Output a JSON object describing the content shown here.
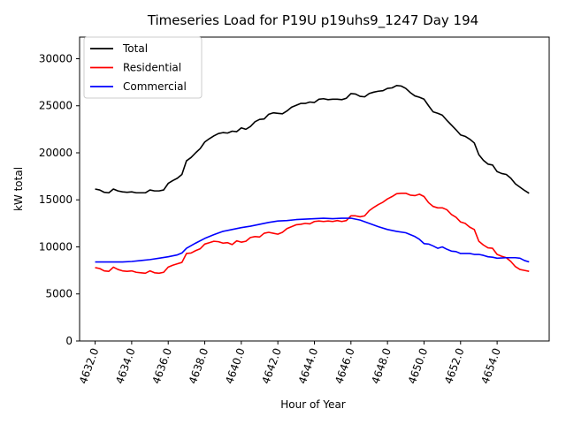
{
  "chart_data": {
    "type": "line",
    "title": "Timeseries Load for P19U p19uhs9_1247  Day 194",
    "xlabel": "Hour of Year",
    "ylabel": "kW total",
    "xlim": [
      4631.15,
      4656.85
    ],
    "ylim": [
      0,
      32300
    ],
    "x_ticks": [
      4632,
      4634,
      4636,
      4638,
      4640,
      4642,
      4644,
      4646,
      4648,
      4650,
      4652,
      4654
    ],
    "x_tick_labels": [
      "4632.0",
      "4634.0",
      "4636.0",
      "4638.0",
      "4640.0",
      "4642.0",
      "4644.0",
      "4646.0",
      "4648.0",
      "4650.0",
      "4652.0",
      "4654.0"
    ],
    "y_ticks": [
      0,
      5000,
      10000,
      15000,
      20000,
      25000,
      30000
    ],
    "y_tick_labels": [
      "0",
      "5000",
      "10000",
      "15000",
      "20000",
      "25000",
      "30000"
    ],
    "grid": false,
    "legend_position": "top-left",
    "series": [
      {
        "name": "Total",
        "color": "#000000",
        "points": [
          [
            4632.0,
            16150
          ],
          [
            4632.25,
            16050
          ],
          [
            4632.5,
            15800
          ],
          [
            4632.75,
            15750
          ],
          [
            4633.0,
            16150
          ],
          [
            4633.25,
            15950
          ],
          [
            4633.5,
            15850
          ],
          [
            4633.75,
            15800
          ],
          [
            4634.0,
            15850
          ],
          [
            4634.25,
            15750
          ],
          [
            4634.5,
            15750
          ],
          [
            4634.75,
            15750
          ],
          [
            4635.0,
            16050
          ],
          [
            4635.25,
            15950
          ],
          [
            4635.5,
            15950
          ],
          [
            4635.75,
            16050
          ],
          [
            4636.0,
            16750
          ],
          [
            4636.25,
            17050
          ],
          [
            4636.5,
            17300
          ],
          [
            4636.75,
            17700
          ],
          [
            4637.0,
            19150
          ],
          [
            4637.25,
            19500
          ],
          [
            4637.5,
            20000
          ],
          [
            4637.75,
            20450
          ],
          [
            4638.0,
            21150
          ],
          [
            4638.25,
            21500
          ],
          [
            4638.5,
            21800
          ],
          [
            4638.75,
            22050
          ],
          [
            4639.0,
            22150
          ],
          [
            4639.25,
            22100
          ],
          [
            4639.5,
            22300
          ],
          [
            4639.75,
            22250
          ],
          [
            4640.0,
            22650
          ],
          [
            4640.25,
            22500
          ],
          [
            4640.5,
            22800
          ],
          [
            4640.75,
            23300
          ],
          [
            4641.0,
            23550
          ],
          [
            4641.25,
            23600
          ],
          [
            4641.5,
            24100
          ],
          [
            4641.75,
            24250
          ],
          [
            4642.0,
            24200
          ],
          [
            4642.25,
            24150
          ],
          [
            4642.5,
            24450
          ],
          [
            4642.75,
            24850
          ],
          [
            4643.0,
            25050
          ],
          [
            4643.25,
            25250
          ],
          [
            4643.5,
            25250
          ],
          [
            4643.75,
            25400
          ],
          [
            4644.0,
            25350
          ],
          [
            4644.25,
            25700
          ],
          [
            4644.5,
            25750
          ],
          [
            4644.75,
            25650
          ],
          [
            4645.0,
            25700
          ],
          [
            4645.25,
            25700
          ],
          [
            4645.5,
            25650
          ],
          [
            4645.75,
            25800
          ],
          [
            4646.0,
            26300
          ],
          [
            4646.25,
            26250
          ],
          [
            4646.5,
            26000
          ],
          [
            4646.75,
            25950
          ],
          [
            4647.0,
            26300
          ],
          [
            4647.25,
            26450
          ],
          [
            4647.5,
            26550
          ],
          [
            4647.75,
            26600
          ],
          [
            4648.0,
            26850
          ],
          [
            4648.25,
            26900
          ],
          [
            4648.5,
            27150
          ],
          [
            4648.75,
            27100
          ],
          [
            4649.0,
            26850
          ],
          [
            4649.25,
            26400
          ],
          [
            4649.5,
            26050
          ],
          [
            4649.75,
            25900
          ],
          [
            4650.0,
            25700
          ],
          [
            4650.25,
            25000
          ],
          [
            4650.5,
            24350
          ],
          [
            4650.75,
            24200
          ],
          [
            4651.0,
            24000
          ],
          [
            4651.25,
            23450
          ],
          [
            4651.5,
            22950
          ],
          [
            4651.75,
            22450
          ],
          [
            4652.0,
            21900
          ],
          [
            4652.25,
            21750
          ],
          [
            4652.5,
            21450
          ],
          [
            4652.75,
            21050
          ],
          [
            4653.0,
            19800
          ],
          [
            4653.25,
            19200
          ],
          [
            4653.5,
            18800
          ],
          [
            4653.75,
            18700
          ],
          [
            4654.0,
            18000
          ],
          [
            4654.25,
            17800
          ],
          [
            4654.5,
            17700
          ],
          [
            4654.75,
            17300
          ],
          [
            4655.0,
            16700
          ],
          [
            4655.25,
            16350
          ],
          [
            4655.5,
            16000
          ],
          [
            4655.75,
            15700
          ]
        ]
      },
      {
        "name": "Residential",
        "color": "#ff0000",
        "points": [
          [
            4632.0,
            7800
          ],
          [
            4632.25,
            7700
          ],
          [
            4632.5,
            7450
          ],
          [
            4632.75,
            7400
          ],
          [
            4633.0,
            7850
          ],
          [
            4633.25,
            7600
          ],
          [
            4633.5,
            7450
          ],
          [
            4633.75,
            7400
          ],
          [
            4634.0,
            7450
          ],
          [
            4634.25,
            7300
          ],
          [
            4634.5,
            7250
          ],
          [
            4634.75,
            7200
          ],
          [
            4635.0,
            7450
          ],
          [
            4635.25,
            7250
          ],
          [
            4635.5,
            7200
          ],
          [
            4635.75,
            7300
          ],
          [
            4636.0,
            7850
          ],
          [
            4636.25,
            8050
          ],
          [
            4636.5,
            8200
          ],
          [
            4636.75,
            8350
          ],
          [
            4637.0,
            9300
          ],
          [
            4637.25,
            9350
          ],
          [
            4637.5,
            9600
          ],
          [
            4637.75,
            9800
          ],
          [
            4638.0,
            10300
          ],
          [
            4638.25,
            10450
          ],
          [
            4638.5,
            10600
          ],
          [
            4638.75,
            10550
          ],
          [
            4639.0,
            10400
          ],
          [
            4639.25,
            10450
          ],
          [
            4639.5,
            10250
          ],
          [
            4639.75,
            10650
          ],
          [
            4640.0,
            10500
          ],
          [
            4640.25,
            10600
          ],
          [
            4640.5,
            11000
          ],
          [
            4640.75,
            11100
          ],
          [
            4641.0,
            11050
          ],
          [
            4641.25,
            11450
          ],
          [
            4641.5,
            11550
          ],
          [
            4641.75,
            11450
          ],
          [
            4642.0,
            11350
          ],
          [
            4642.25,
            11550
          ],
          [
            4642.5,
            11950
          ],
          [
            4642.75,
            12150
          ],
          [
            4643.0,
            12350
          ],
          [
            4643.25,
            12400
          ],
          [
            4643.5,
            12500
          ],
          [
            4643.75,
            12450
          ],
          [
            4644.0,
            12700
          ],
          [
            4644.25,
            12750
          ],
          [
            4644.5,
            12700
          ],
          [
            4644.75,
            12750
          ],
          [
            4645.0,
            12700
          ],
          [
            4645.25,
            12800
          ],
          [
            4645.5,
            12700
          ],
          [
            4645.75,
            12800
          ],
          [
            4646.0,
            13300
          ],
          [
            4646.25,
            13300
          ],
          [
            4646.5,
            13200
          ],
          [
            4646.75,
            13300
          ],
          [
            4647.0,
            13850
          ],
          [
            4647.25,
            14200
          ],
          [
            4647.5,
            14500
          ],
          [
            4647.75,
            14750
          ],
          [
            4648.0,
            15100
          ],
          [
            4648.25,
            15350
          ],
          [
            4648.5,
            15650
          ],
          [
            4648.75,
            15700
          ],
          [
            4649.0,
            15700
          ],
          [
            4649.25,
            15500
          ],
          [
            4649.5,
            15450
          ],
          [
            4649.75,
            15600
          ],
          [
            4650.0,
            15350
          ],
          [
            4650.25,
            14700
          ],
          [
            4650.5,
            14300
          ],
          [
            4650.75,
            14150
          ],
          [
            4651.0,
            14150
          ],
          [
            4651.25,
            13950
          ],
          [
            4651.5,
            13450
          ],
          [
            4651.75,
            13150
          ],
          [
            4652.0,
            12650
          ],
          [
            4652.25,
            12500
          ],
          [
            4652.5,
            12100
          ],
          [
            4652.75,
            11850
          ],
          [
            4653.0,
            10600
          ],
          [
            4653.25,
            10200
          ],
          [
            4653.5,
            9900
          ],
          [
            4653.75,
            9850
          ],
          [
            4654.0,
            9200
          ],
          [
            4654.25,
            9000
          ],
          [
            4654.5,
            8850
          ],
          [
            4654.75,
            8450
          ],
          [
            4655.0,
            7900
          ],
          [
            4655.25,
            7600
          ],
          [
            4655.5,
            7500
          ],
          [
            4655.75,
            7400
          ]
        ]
      },
      {
        "name": "Commercial",
        "color": "#0000ff",
        "points": [
          [
            4632.0,
            8400
          ],
          [
            4632.5,
            8400
          ],
          [
            4633.0,
            8400
          ],
          [
            4633.5,
            8400
          ],
          [
            4634.0,
            8450
          ],
          [
            4634.5,
            8550
          ],
          [
            4635.0,
            8650
          ],
          [
            4635.5,
            8800
          ],
          [
            4636.0,
            8950
          ],
          [
            4636.5,
            9150
          ],
          [
            4636.75,
            9350
          ],
          [
            4637.0,
            9850
          ],
          [
            4637.5,
            10400
          ],
          [
            4638.0,
            10900
          ],
          [
            4638.5,
            11300
          ],
          [
            4639.0,
            11650
          ],
          [
            4639.5,
            11850
          ],
          [
            4640.0,
            12050
          ],
          [
            4640.5,
            12200
          ],
          [
            4641.0,
            12400
          ],
          [
            4641.5,
            12600
          ],
          [
            4642.0,
            12750
          ],
          [
            4642.5,
            12800
          ],
          [
            4643.0,
            12900
          ],
          [
            4643.5,
            12950
          ],
          [
            4644.0,
            13000
          ],
          [
            4644.5,
            13050
          ],
          [
            4645.0,
            13000
          ],
          [
            4645.5,
            13050
          ],
          [
            4646.0,
            13050
          ],
          [
            4646.5,
            12850
          ],
          [
            4647.0,
            12500
          ],
          [
            4647.5,
            12150
          ],
          [
            4648.0,
            11850
          ],
          [
            4648.5,
            11650
          ],
          [
            4649.0,
            11500
          ],
          [
            4649.5,
            11100
          ],
          [
            4649.75,
            10800
          ],
          [
            4650.0,
            10350
          ],
          [
            4650.25,
            10300
          ],
          [
            4650.5,
            10100
          ],
          [
            4650.75,
            9850
          ],
          [
            4651.0,
            10000
          ],
          [
            4651.25,
            9750
          ],
          [
            4651.5,
            9550
          ],
          [
            4651.75,
            9500
          ],
          [
            4652.0,
            9300
          ],
          [
            4652.5,
            9300
          ],
          [
            4652.75,
            9200
          ],
          [
            4653.0,
            9200
          ],
          [
            4653.25,
            9100
          ],
          [
            4653.5,
            8950
          ],
          [
            4653.75,
            8900
          ],
          [
            4654.0,
            8800
          ],
          [
            4654.5,
            8850
          ],
          [
            4655.0,
            8850
          ],
          [
            4655.25,
            8800
          ],
          [
            4655.5,
            8550
          ],
          [
            4655.75,
            8400
          ]
        ]
      }
    ]
  }
}
